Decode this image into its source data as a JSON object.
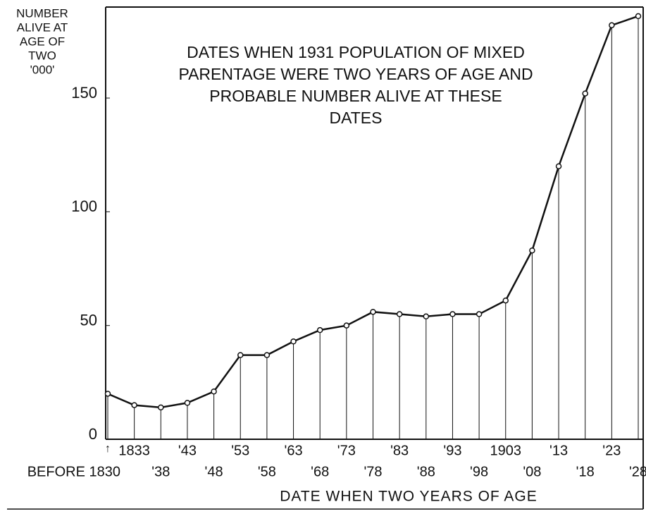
{
  "chart_data": {
    "type": "line",
    "title_lines": [
      "DATES WHEN 1931 POPULATION OF MIXED",
      "PARENTAGE WERE TWO YEARS OF AGE AND",
      "PROBABLE NUMBER ALIVE AT THESE",
      "DATES"
    ],
    "ylabel_lines": [
      "NUMBER",
      "ALIVE AT",
      "AGE OF",
      "TWO",
      "'000'"
    ],
    "xlabel": "DATE WHEN TWO YEARS OF AGE",
    "categories": [
      "BEFORE 1830",
      "1833",
      "'38",
      "'43",
      "'48",
      "'53",
      "'58",
      "'63",
      "'68",
      "'73",
      "'78",
      "'83",
      "'88",
      "'93",
      "'98",
      "1903",
      "'08",
      "'13",
      "'18",
      "'23",
      "'28"
    ],
    "series": [
      {
        "name": "Number alive at age of two",
        "color": "#111111",
        "values": [
          20,
          15,
          14,
          16,
          21,
          37,
          37,
          43,
          48,
          50,
          56,
          55,
          54,
          55,
          55,
          61,
          83,
          120,
          152,
          182,
          186
        ]
      }
    ],
    "ylim": [
      0,
      190
    ],
    "yticks": [
      0,
      50,
      100,
      150
    ],
    "drop_lines": true
  }
}
